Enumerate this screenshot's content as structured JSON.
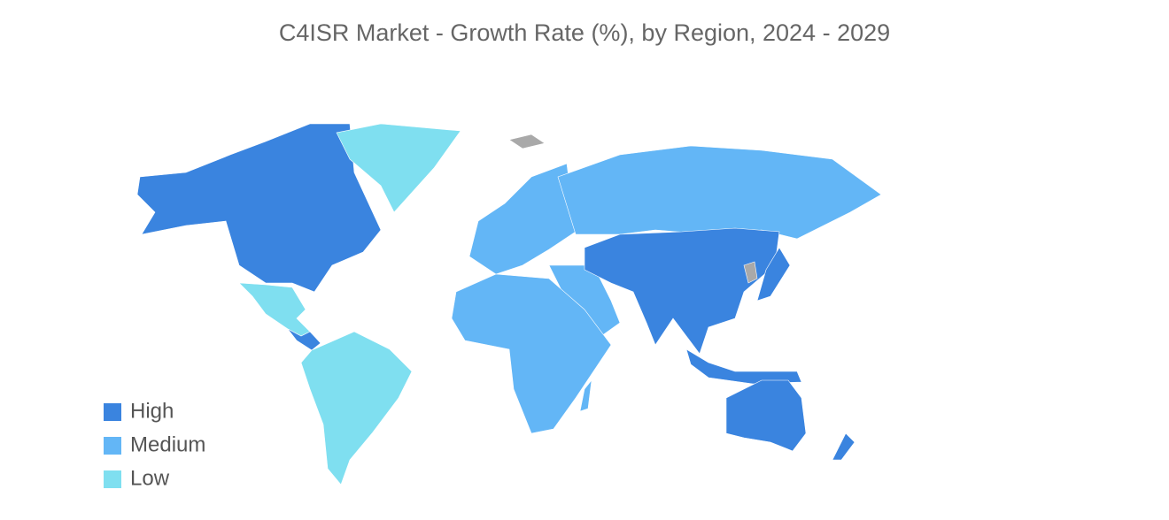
{
  "title": "C4ISR Market - Growth Rate (%), by Region, 2024 - 2029",
  "legend": [
    {
      "name": "High",
      "color": "#3a84df"
    },
    {
      "name": "Medium",
      "color": "#63b6f6"
    },
    {
      "name": "Low",
      "color": "#7fdff0"
    }
  ],
  "no_data_color": "#a9a9a9"
}
